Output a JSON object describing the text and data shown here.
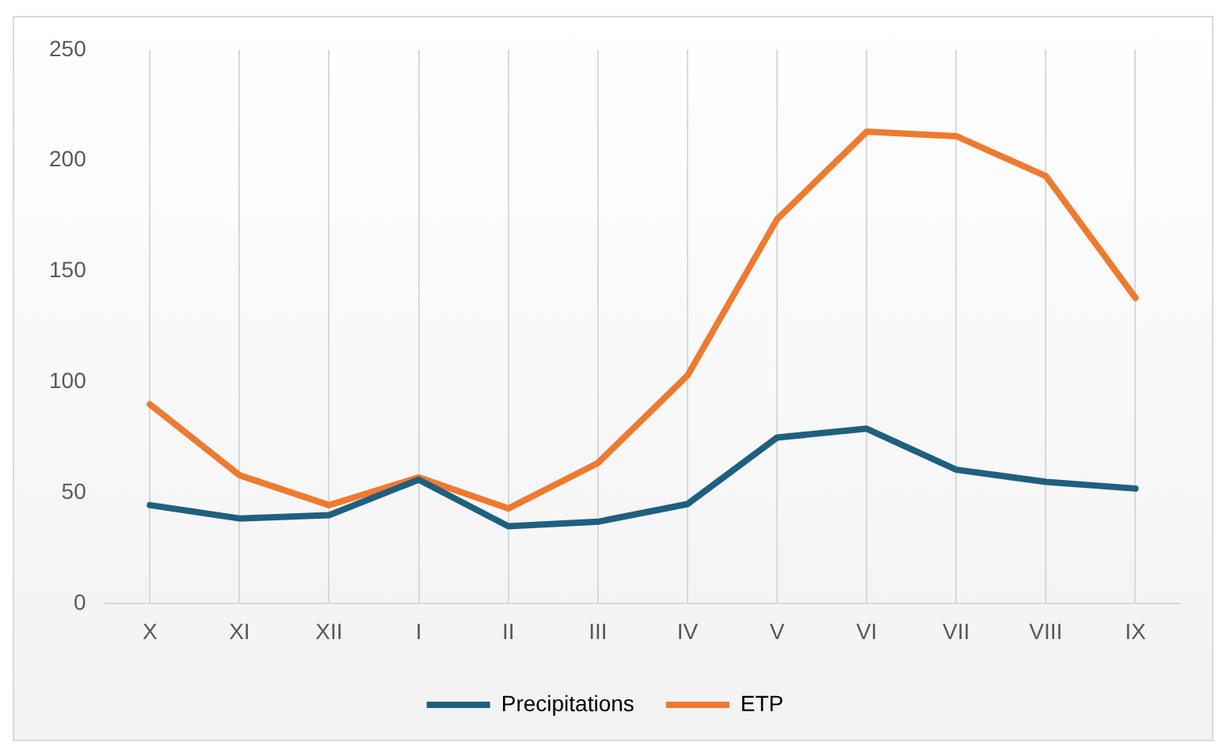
{
  "chart_data": {
    "type": "line",
    "categories": [
      "X",
      "XI",
      "XII",
      "I",
      "II",
      "III",
      "IV",
      "V",
      "VI",
      "VII",
      "VIII",
      "IX"
    ],
    "series": [
      {
        "name": "Precipitations",
        "color": "#1f5f7f",
        "values": [
          44.5,
          38.5,
          40,
          56,
          35,
          37,
          45,
          75,
          79,
          60.5,
          55,
          52
        ]
      },
      {
        "name": "ETP",
        "color": "#ee7a30",
        "values": [
          90,
          58,
          44.5,
          57,
          43,
          63.5,
          103,
          173.5,
          213,
          211,
          193,
          138
        ]
      }
    ],
    "ylim": [
      0,
      250
    ],
    "yticks": [
      0,
      50,
      100,
      150,
      200,
      250
    ],
    "grid": "x",
    "legend": "bottom",
    "marker": "none",
    "line_style": "solid"
  }
}
